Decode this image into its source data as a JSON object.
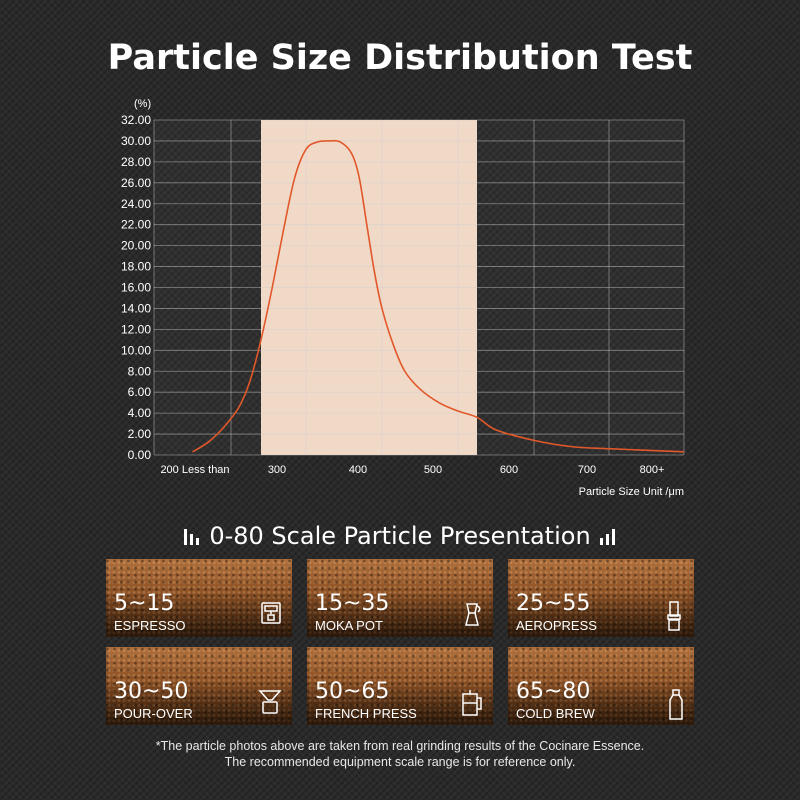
{
  "title": "Particle Size Distribution Test",
  "chart_data": {
    "type": "line",
    "y_unit_label": "(%)",
    "x_unit_label": "Particle Size Unit /μm",
    "y_ticks": [
      "32.00",
      "30.00",
      "28.00",
      "26.00",
      "24.00",
      "22.00",
      "20.00",
      "18.00",
      "16.00",
      "14.00",
      "12.00",
      "10.00",
      "8.00",
      "6.00",
      "4.00",
      "2.00",
      "0.00"
    ],
    "x_ticks": [
      "200 Less than",
      "300",
      "400",
      "500",
      "600",
      "700",
      "800+"
    ],
    "ylim": [
      0,
      32
    ],
    "highlight_range_um": [
      340,
      625
    ],
    "grid": true,
    "series": [
      {
        "name": "Particle distribution",
        "color": "#e1582a",
        "points": [
          [
            250,
            0.3
          ],
          [
            270,
            1.2
          ],
          [
            290,
            2.6
          ],
          [
            310,
            4.5
          ],
          [
            325,
            7.0
          ],
          [
            340,
            11.0
          ],
          [
            355,
            16.0
          ],
          [
            370,
            21.5
          ],
          [
            385,
            26.5
          ],
          [
            400,
            29.2
          ],
          [
            415,
            29.9
          ],
          [
            430,
            30.0
          ],
          [
            445,
            29.9
          ],
          [
            460,
            28.8
          ],
          [
            470,
            26.5
          ],
          [
            480,
            22.0
          ],
          [
            490,
            17.5
          ],
          [
            500,
            14.0
          ],
          [
            515,
            10.5
          ],
          [
            530,
            8.0
          ],
          [
            550,
            6.3
          ],
          [
            575,
            5.0
          ],
          [
            600,
            4.2
          ],
          [
            625,
            3.6
          ],
          [
            650,
            2.4
          ],
          [
            700,
            1.4
          ],
          [
            750,
            0.8
          ],
          [
            800,
            0.6
          ],
          [
            840,
            0.3
          ]
        ]
      }
    ]
  },
  "section": {
    "title": "0-80 Scale Particle Presentation"
  },
  "tiles": [
    {
      "range": "5~15",
      "method": "ESPRESSO",
      "icon": "espresso-machine-icon"
    },
    {
      "range": "15~35",
      "method": "MOKA POT",
      "icon": "moka-pot-icon"
    },
    {
      "range": "25~55",
      "method": "AEROPRESS",
      "icon": "aeropress-icon"
    },
    {
      "range": "30~50",
      "method": "POUR-OVER",
      "icon": "pour-over-icon"
    },
    {
      "range": "50~65",
      "method": "FRENCH PRESS",
      "icon": "french-press-icon"
    },
    {
      "range": "65~80",
      "method": "COLD BREW",
      "icon": "cold-brew-bottle-icon"
    }
  ],
  "footnote": {
    "line1": "*The particle photos above are taken from real grinding results of the Cocinare Essence.",
    "line2": "The recommended equipment scale range is for reference only."
  },
  "colors": {
    "background": "#2a2a2a",
    "highlight": "#f1d9c8",
    "curve": "#e1582a"
  }
}
